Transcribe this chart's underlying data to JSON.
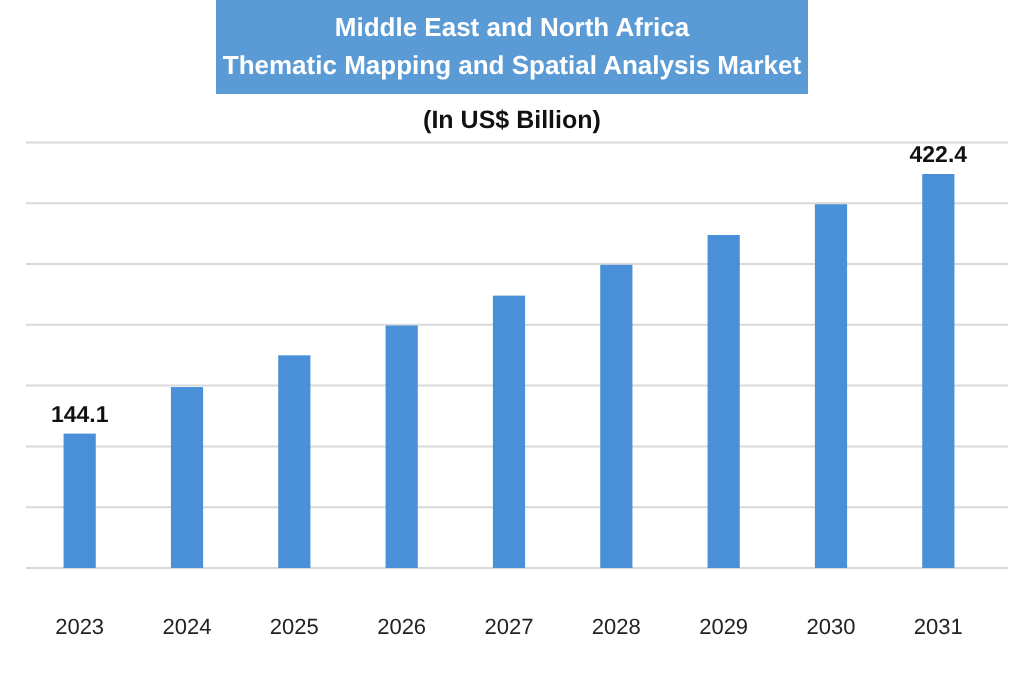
{
  "chart_data": {
    "type": "bar",
    "title": "Middle East and North Africa\nThematic Mapping and Spatial Analysis Market",
    "subtitle": "(In US$ Billion)",
    "categories": [
      "2023",
      "2024",
      "2025",
      "2026",
      "2027",
      "2028",
      "2029",
      "2030",
      "2031"
    ],
    "values": [
      144.1,
      194,
      228,
      260,
      292,
      325,
      357,
      390,
      422.4
    ],
    "value_labels": [
      "144.1",
      null,
      null,
      null,
      null,
      null,
      null,
      null,
      "422.4"
    ],
    "color": "#4a90d9",
    "grid": "y"
  }
}
